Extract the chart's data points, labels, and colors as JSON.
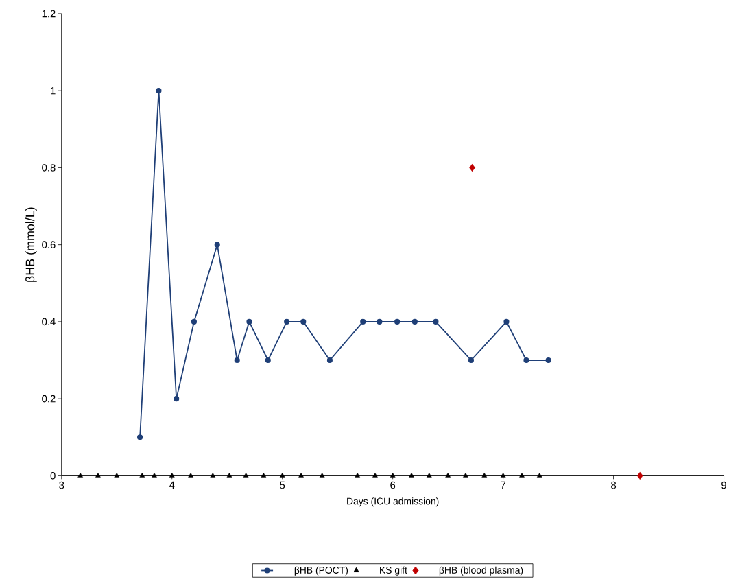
{
  "chart_data": {
    "type": "line",
    "xlabel": "Days (ICU admission)",
    "ylabel": "βHB (mmol/L)",
    "xlim": [
      3,
      9
    ],
    "xticks": [
      3,
      4,
      5,
      6,
      7,
      8,
      9
    ],
    "ylim": [
      0,
      1.2
    ],
    "yticks": [
      0,
      0.2,
      0.4,
      0.6,
      0.8,
      1,
      1.2
    ],
    "grid": false,
    "legend": "bottom",
    "line_style": "solid",
    "series": [
      {
        "name": "βHB (POCT)",
        "marker": "circle",
        "color": "#1f3f77",
        "x": [
          3.71,
          3.88,
          4.04,
          4.2,
          4.41,
          4.59,
          4.7,
          4.87,
          5.04,
          5.19,
          5.43,
          5.73,
          5.88,
          6.04,
          6.2,
          6.39,
          6.71,
          7.03,
          7.21,
          7.41
        ],
        "values": [
          0.1,
          1,
          0.2,
          0.4,
          0.6,
          0.3,
          0.4,
          0.3,
          0.4,
          0.4,
          0.3,
          0.4,
          0.4,
          0.4,
          0.4,
          0.4,
          0.3,
          0.4,
          0.3,
          0.3
        ]
      },
      {
        "name": "KS gift",
        "type": "scatter",
        "marker": "triangle",
        "color": "#000000",
        "x": [
          3.17,
          3.33,
          3.5,
          3.73,
          3.84,
          4.0,
          4.17,
          4.37,
          4.52,
          4.67,
          4.83,
          5.0,
          5.17,
          5.36,
          5.68,
          5.84,
          6.0,
          6.17,
          6.33,
          6.5,
          6.66,
          6.83,
          7.0,
          7.17,
          7.33
        ],
        "values": [
          0,
          0,
          0,
          0,
          0,
          0,
          0,
          0,
          0,
          0,
          0,
          0,
          0,
          0,
          0,
          0,
          0,
          0,
          0,
          0,
          0,
          0,
          0,
          0,
          0
        ]
      },
      {
        "name": "βHB (blood plasma)",
        "type": "scatter",
        "marker": "diamond",
        "color": "#c00000",
        "x": [
          6.72,
          8.24
        ],
        "values": [
          0.8,
          0
        ]
      }
    ]
  }
}
